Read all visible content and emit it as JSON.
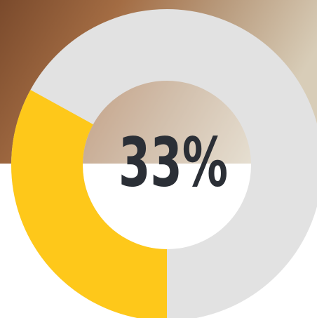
{
  "chart_data": {
    "type": "donut",
    "values": [
      33
    ],
    "value_labels": [
      "33%"
    ],
    "ylim": [
      0,
      100
    ],
    "color": "#fec81a",
    "track_color": "#e2e2e2"
  }
}
